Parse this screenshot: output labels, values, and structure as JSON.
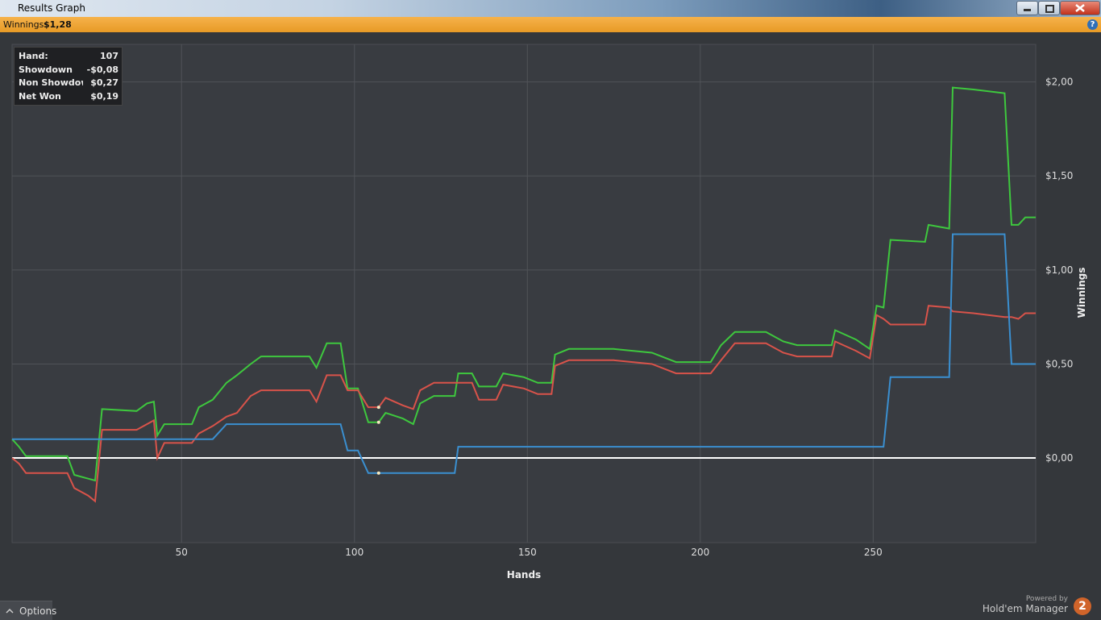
{
  "window": {
    "title": "Results Graph"
  },
  "banner": {
    "label": "Winnings:",
    "value": "$1,28",
    "help": "?"
  },
  "tooltip": {
    "rows": [
      {
        "label": "Hand:",
        "value": 107
      },
      {
        "label": "Showdown",
        "value": "-$0,08"
      },
      {
        "label": "Non Showdown",
        "value": "$0,27"
      },
      {
        "label": "Net Won",
        "value": "$0,19"
      }
    ]
  },
  "footer": {
    "options": "Options",
    "powered": "Powered by",
    "brand": "Hold'em Manager",
    "logo": "2"
  },
  "chart_data": {
    "type": "line",
    "x_label": "Hands",
    "y_label": "Winnings",
    "grid": true,
    "xlim": [
      1,
      297
    ],
    "ylim": [
      -0.45,
      2.2
    ],
    "xticks": [
      50,
      100,
      150,
      200,
      250
    ],
    "yticks": [
      {
        "value": 0,
        "label": "$0,00"
      },
      {
        "value": 0.5,
        "label": "$0,50"
      },
      {
        "value": 1,
        "label": "$1,00"
      },
      {
        "value": 1.5,
        "label": "$1,50"
      },
      {
        "value": 2,
        "label": "$2,00"
      }
    ],
    "x": [
      1,
      3,
      5,
      17,
      19,
      23,
      25,
      27,
      37,
      40,
      42,
      43,
      45,
      53,
      55,
      59,
      63,
      66,
      70,
      73,
      87,
      89,
      92,
      96,
      98,
      101,
      104,
      107,
      109,
      114,
      117,
      119,
      123,
      129,
      130,
      134,
      136,
      141,
      143,
      149,
      153,
      157,
      158,
      162,
      170,
      175,
      186,
      193,
      203,
      206,
      210,
      219,
      224,
      228,
      238,
      239,
      245,
      249,
      251,
      253,
      255,
      265,
      266,
      272,
      273,
      279,
      288,
      290,
      292,
      294,
      297
    ],
    "series": [
      {
        "name": "Net Won",
        "color": "#3ec83e",
        "values": [
          0.1,
          0.06,
          0.01,
          0.01,
          -0.09,
          -0.11,
          -0.12,
          0.26,
          0.25,
          0.29,
          0.3,
          0.12,
          0.18,
          0.18,
          0.27,
          0.31,
          0.4,
          0.44,
          0.5,
          0.54,
          0.54,
          0.48,
          0.61,
          0.61,
          0.37,
          0.37,
          0.19,
          0.19,
          0.24,
          0.21,
          0.18,
          0.29,
          0.33,
          0.33,
          0.45,
          0.45,
          0.38,
          0.38,
          0.45,
          0.43,
          0.4,
          0.4,
          0.55,
          0.58,
          0.58,
          0.58,
          0.56,
          0.51,
          0.51,
          0.6,
          0.67,
          0.67,
          0.62,
          0.6,
          0.6,
          0.68,
          0.63,
          0.58,
          0.81,
          0.8,
          1.16,
          1.15,
          1.24,
          1.22,
          1.97,
          1.96,
          1.94,
          1.24,
          1.24,
          1.28,
          1.28
        ]
      },
      {
        "name": "Non Showdown",
        "color": "#d9534a",
        "values": [
          0.0,
          -0.03,
          -0.08,
          -0.08,
          -0.16,
          -0.2,
          -0.23,
          0.15,
          0.15,
          0.18,
          0.2,
          0.0,
          0.08,
          0.08,
          0.13,
          0.17,
          0.22,
          0.24,
          0.33,
          0.36,
          0.36,
          0.3,
          0.44,
          0.44,
          0.36,
          0.36,
          0.27,
          0.27,
          0.32,
          0.28,
          0.26,
          0.36,
          0.4,
          0.4,
          0.4,
          0.4,
          0.31,
          0.31,
          0.39,
          0.37,
          0.34,
          0.34,
          0.49,
          0.52,
          0.52,
          0.52,
          0.5,
          0.45,
          0.45,
          0.52,
          0.61,
          0.61,
          0.56,
          0.54,
          0.54,
          0.62,
          0.57,
          0.53,
          0.76,
          0.74,
          0.71,
          0.71,
          0.81,
          0.8,
          0.78,
          0.77,
          0.75,
          0.75,
          0.74,
          0.77,
          0.77
        ]
      },
      {
        "name": "Showdown",
        "color": "#3a8fd0",
        "values": [
          0.1,
          0.1,
          0.1,
          0.1,
          0.1,
          0.1,
          0.1,
          0.1,
          0.1,
          0.1,
          0.1,
          0.1,
          0.1,
          0.1,
          0.1,
          0.1,
          0.18,
          0.18,
          0.18,
          0.18,
          0.18,
          0.18,
          0.18,
          0.18,
          0.04,
          0.04,
          -0.08,
          -0.08,
          -0.08,
          -0.08,
          -0.08,
          -0.08,
          -0.08,
          -0.08,
          0.06,
          0.06,
          0.06,
          0.06,
          0.06,
          0.06,
          0.06,
          0.06,
          0.06,
          0.06,
          0.06,
          0.06,
          0.06,
          0.06,
          0.06,
          0.06,
          0.06,
          0.06,
          0.06,
          0.06,
          0.06,
          0.06,
          0.06,
          0.06,
          0.06,
          0.06,
          0.43,
          0.43,
          0.43,
          0.43,
          1.19,
          1.19,
          1.19,
          0.5,
          0.5,
          0.5,
          0.5
        ]
      }
    ]
  }
}
